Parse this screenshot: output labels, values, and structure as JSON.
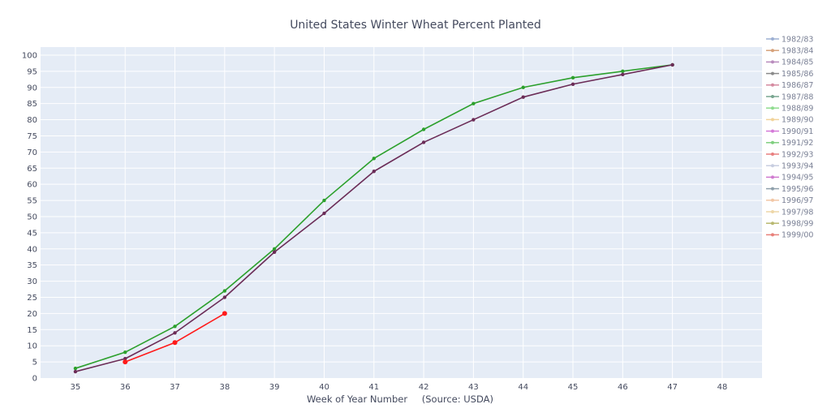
{
  "chart_data": {
    "type": "line",
    "title": "United States Winter Wheat Percent Planted",
    "xlabel": "Week of Year Number",
    "source_note": "(Source: USDA)",
    "ylabel": "",
    "xlim": [
      34.3,
      48.8
    ],
    "ylim": [
      0,
      102.5
    ],
    "x_ticks": [
      35,
      36,
      37,
      38,
      39,
      40,
      41,
      42,
      43,
      44,
      45,
      46,
      47,
      48
    ],
    "y_ticks": [
      0,
      5,
      10,
      15,
      20,
      25,
      30,
      35,
      40,
      45,
      50,
      55,
      60,
      65,
      70,
      75,
      80,
      85,
      90,
      95,
      100
    ],
    "grid": true,
    "legend_position": "right",
    "legend_series": [
      {
        "name": "1982/83",
        "color": "#9db0d3"
      },
      {
        "name": "1983/84",
        "color": "#d6a17a"
      },
      {
        "name": "1984/85",
        "color": "#b98bbd"
      },
      {
        "name": "1985/86",
        "color": "#8a8a8a"
      },
      {
        "name": "1986/87",
        "color": "#d58aa0"
      },
      {
        "name": "1987/88",
        "color": "#79a690"
      },
      {
        "name": "1988/89",
        "color": "#8fdc8f"
      },
      {
        "name": "1989/90",
        "color": "#f2d39a"
      },
      {
        "name": "1990/91",
        "color": "#d47ad8"
      },
      {
        "name": "1991/92",
        "color": "#7fcf7f"
      },
      {
        "name": "1992/93",
        "color": "#e88080"
      },
      {
        "name": "1993/94",
        "color": "#c8cee0"
      },
      {
        "name": "1994/95",
        "color": "#d07ad0"
      },
      {
        "name": "1995/96",
        "color": "#8fa0ab"
      },
      {
        "name": "1996/97",
        "color": "#f2c7a5"
      },
      {
        "name": "1997/98",
        "color": "#eed7a8"
      },
      {
        "name": "1998/99",
        "color": "#b8b870"
      },
      {
        "name": "1999/00",
        "color": "#e8807a"
      }
    ],
    "series": [
      {
        "name": "green",
        "color": "#2ca02c",
        "x": [
          35,
          36,
          37,
          38,
          39,
          40,
          41,
          42,
          43,
          44,
          45,
          46,
          47
        ],
        "values": [
          3,
          8,
          16,
          27,
          40,
          55,
          68,
          77,
          85,
          90,
          93,
          95,
          97
        ]
      },
      {
        "name": "purple",
        "color": "#6b2c57",
        "x": [
          35,
          36,
          37,
          38,
          39,
          40,
          41,
          42,
          43,
          44,
          45,
          46,
          47
        ],
        "values": [
          2,
          6,
          14,
          25,
          39,
          51,
          64,
          73,
          80,
          87,
          91,
          94,
          97
        ]
      },
      {
        "name": "red",
        "color": "#ff1a1a",
        "x": [
          36,
          37,
          38
        ],
        "values": [
          5,
          11,
          20
        ]
      }
    ]
  }
}
